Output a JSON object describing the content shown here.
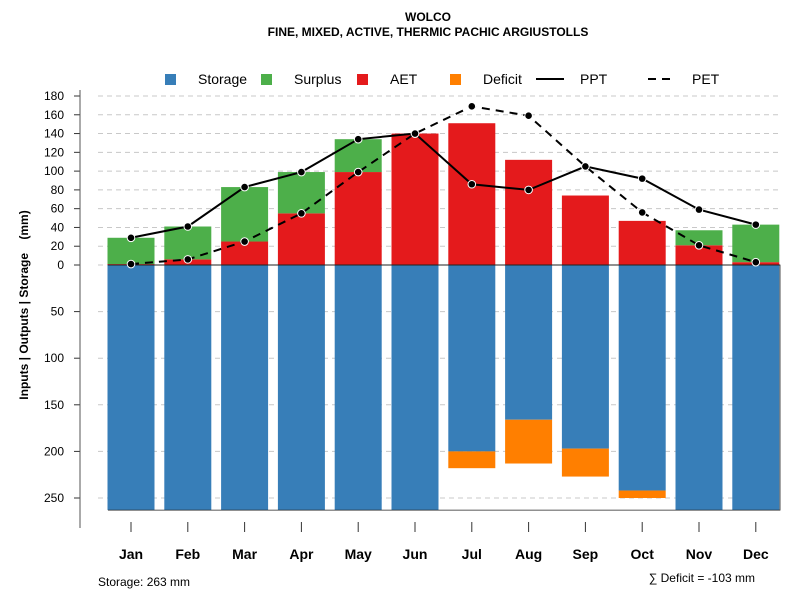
{
  "chart_data": {
    "type": "bar",
    "title": "WOLCO",
    "subtitle": "FINE, MIXED, ACTIVE, THERMIC PACHIC ARGIUSTOLLS",
    "ylabel": "Inputs | Outputs | Storage    (mm)",
    "categories": [
      "Jan",
      "Feb",
      "Mar",
      "Apr",
      "May",
      "Jun",
      "Jul",
      "Aug",
      "Sep",
      "Oct",
      "Nov",
      "Dec"
    ],
    "upper_ylim": [
      0,
      180
    ],
    "upper_ticks": [
      0,
      20,
      40,
      60,
      80,
      100,
      120,
      140,
      160,
      180
    ],
    "lower_ylim": [
      0,
      263
    ],
    "lower_ticks": [
      50,
      100,
      150,
      200,
      250
    ],
    "legend": [
      {
        "label": "Storage",
        "kind": "box",
        "color": "#377EB8"
      },
      {
        "label": "Surplus",
        "kind": "box",
        "color": "#4DAF4A"
      },
      {
        "label": "AET",
        "kind": "box",
        "color": "#E41A1C"
      },
      {
        "label": "Deficit",
        "kind": "box",
        "color": "#FF7F00"
      },
      {
        "label": "PPT",
        "kind": "solid",
        "color": "#000000"
      },
      {
        "label": "PET",
        "kind": "dashed",
        "color": "#000000"
      }
    ],
    "series": [
      {
        "name": "PPT",
        "values": [
          29,
          41,
          83,
          99,
          134,
          140,
          86,
          80,
          105,
          92,
          59,
          43
        ]
      },
      {
        "name": "PET",
        "values": [
          1,
          6,
          25,
          55,
          99,
          140,
          169,
          159,
          105,
          56,
          21,
          3
        ]
      },
      {
        "name": "AET",
        "values": [
          1,
          6,
          25,
          55,
          99,
          140,
          151,
          112,
          74,
          47,
          21,
          3
        ]
      },
      {
        "name": "Surplus",
        "values": [
          28,
          35,
          58,
          44,
          35,
          0,
          0,
          0,
          0,
          0,
          16,
          40
        ]
      },
      {
        "name": "Storage",
        "values": [
          263,
          263,
          263,
          263,
          263,
          263,
          200,
          166,
          197,
          242,
          263,
          263
        ]
      },
      {
        "name": "Deficit",
        "values": [
          0,
          0,
          0,
          0,
          0,
          0,
          18,
          47,
          30,
          8,
          0,
          0
        ]
      }
    ],
    "footer_left": "Storage: 263 mm",
    "footer_right": "∑ Deficit = -103 mm"
  }
}
